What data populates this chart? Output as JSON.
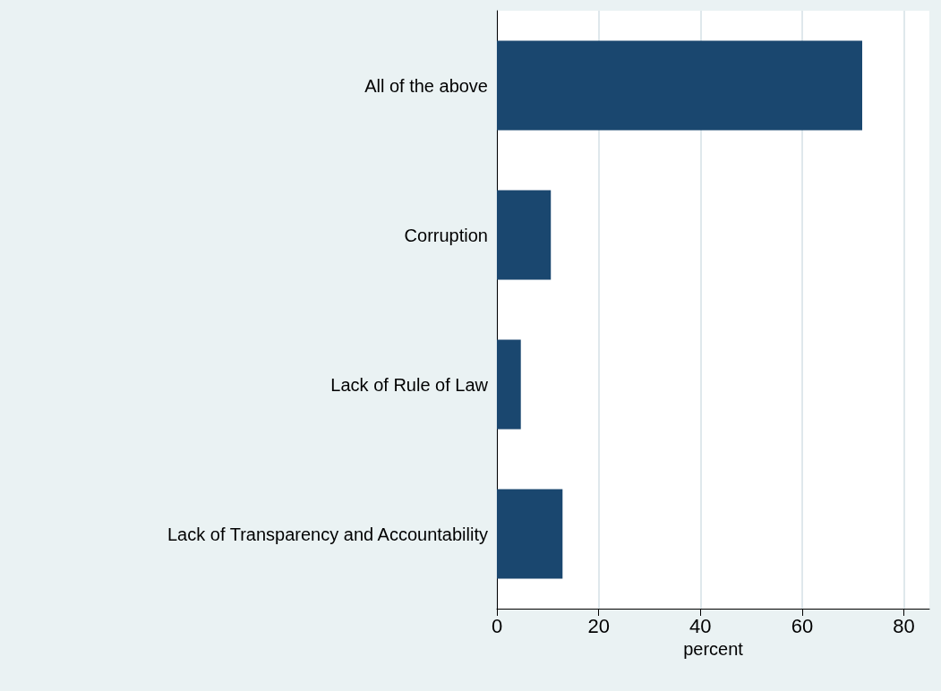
{
  "chart_data": {
    "type": "bar",
    "orientation": "horizontal",
    "categories": [
      "All of the above",
      "Corruption",
      "Lack of Rule of Law",
      "Lack of Transparency and Accountability"
    ],
    "values": [
      71.8,
      10.6,
      4.7,
      12.9
    ],
    "color": "#1a476f",
    "xlabel": "percent",
    "xlim": [
      0,
      85
    ],
    "xticks": [
      0,
      20,
      40,
      60,
      80
    ],
    "grid": "x"
  }
}
